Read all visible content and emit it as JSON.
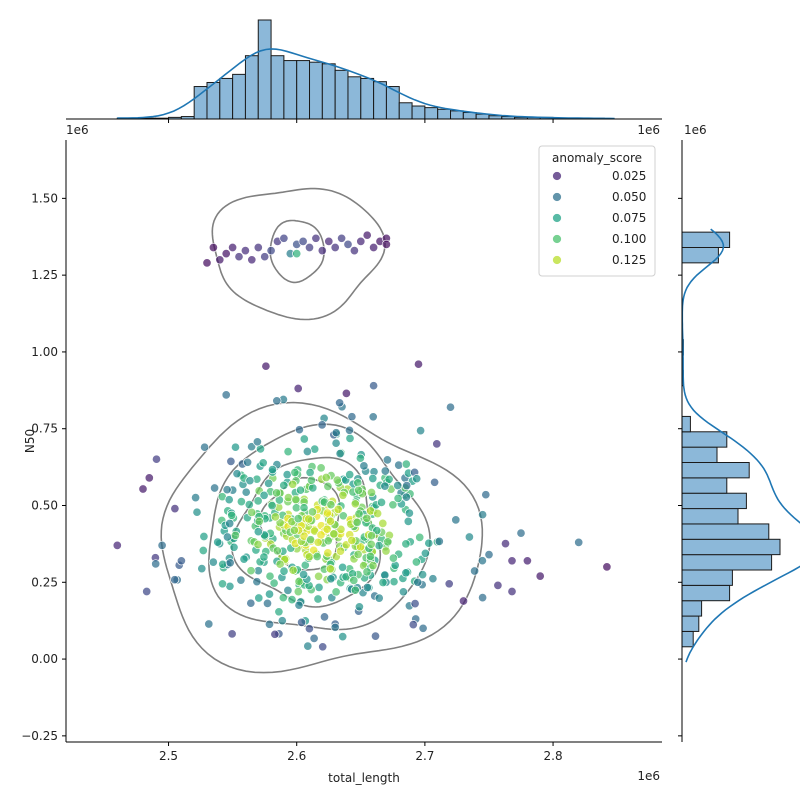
{
  "chart_data": {
    "type": "scatter",
    "subtype": "jointplot",
    "xlabel": "total_length",
    "ylabel": "N50",
    "x_offset_label": "1e6",
    "x_scale": 1000000,
    "xlim": [
      2.42,
      2.885
    ],
    "ylim": [
      -0.27,
      1.69
    ],
    "x_ticks": [
      2.5,
      2.6,
      2.7,
      2.8
    ],
    "x_tick_labels": [
      "2.5",
      "2.6",
      "2.7",
      "2.8"
    ],
    "y_ticks": [
      -0.25,
      0.0,
      0.25,
      0.5,
      0.75,
      1.0,
      1.25,
      1.5
    ],
    "y_tick_labels": [
      "−0.25",
      "0.00",
      "0.25",
      "0.50",
      "0.75",
      "1.00",
      "1.25",
      "1.50"
    ],
    "legend": {
      "title": "anomaly_score",
      "placement": "top-right",
      "entries": [
        {
          "label": "0.025",
          "value": 0.025,
          "color": "#482677"
        },
        {
          "label": "0.050",
          "value": 0.05,
          "color": "#2d708e"
        },
        {
          "label": "0.075",
          "value": 0.075,
          "color": "#20a387"
        },
        {
          "label": "0.100",
          "value": 0.1,
          "color": "#4ac16d"
        },
        {
          "label": "0.125",
          "value": 0.125,
          "color": "#b8de29"
        }
      ]
    },
    "colormap": "viridis",
    "hue_range": [
      0.0,
      0.14
    ],
    "series": [
      {
        "name": "upper cluster",
        "points": [
          [
            2.53,
            1.29,
            0.005
          ],
          [
            2.535,
            1.34,
            0.005
          ],
          [
            2.54,
            1.3,
            0.01
          ],
          [
            2.545,
            1.32,
            0.008
          ],
          [
            2.55,
            1.34,
            0.012
          ],
          [
            2.555,
            1.31,
            0.02
          ],
          [
            2.56,
            1.33,
            0.018
          ],
          [
            2.565,
            1.3,
            0.015
          ],
          [
            2.57,
            1.34,
            0.02
          ],
          [
            2.575,
            1.31,
            0.025
          ],
          [
            2.58,
            1.33,
            0.03
          ],
          [
            2.585,
            1.36,
            0.022
          ],
          [
            2.59,
            1.37,
            0.028
          ],
          [
            2.595,
            1.32,
            0.06
          ],
          [
            2.6,
            1.32,
            0.09
          ],
          [
            2.6,
            1.35,
            0.035
          ],
          [
            2.605,
            1.36,
            0.03
          ],
          [
            2.61,
            1.34,
            0.025
          ],
          [
            2.615,
            1.37,
            0.02
          ],
          [
            2.62,
            1.33,
            0.018
          ],
          [
            2.625,
            1.36,
            0.015
          ],
          [
            2.63,
            1.34,
            0.02
          ],
          [
            2.635,
            1.37,
            0.025
          ],
          [
            2.64,
            1.35,
            0.03
          ],
          [
            2.645,
            1.33,
            0.02
          ],
          [
            2.65,
            1.36,
            0.015
          ],
          [
            2.655,
            1.38,
            0.01
          ],
          [
            2.66,
            1.34,
            0.012
          ],
          [
            2.665,
            1.36,
            0.008
          ],
          [
            2.67,
            1.37,
            0.006
          ],
          [
            2.67,
            1.35,
            0.005
          ]
        ]
      },
      {
        "name": "lower cluster",
        "generated_from_summary": true,
        "center": [
          2.62,
          0.43
        ],
        "spread": [
          0.045,
          0.15
        ],
        "count": 520
      },
      {
        "name": "outliers",
        "points": [
          [
            2.46,
            0.37,
            0.015
          ],
          [
            2.485,
            0.59,
            0.01
          ],
          [
            2.49,
            0.31,
            0.05
          ],
          [
            2.495,
            0.37,
            0.05
          ],
          [
            2.483,
            0.22,
            0.03
          ],
          [
            2.505,
            0.49,
            0.02
          ],
          [
            2.51,
            0.32,
            0.04
          ],
          [
            2.545,
            0.86,
            0.05
          ],
          [
            2.66,
            0.89,
            0.04
          ],
          [
            2.695,
            0.96,
            0.01
          ],
          [
            2.72,
            0.82,
            0.05
          ],
          [
            2.775,
            0.41,
            0.05
          ],
          [
            2.82,
            0.38,
            0.05
          ],
          [
            2.842,
            0.3,
            0.005
          ],
          [
            2.79,
            0.27,
            0.01
          ],
          [
            2.78,
            0.32,
            0.012
          ],
          [
            2.768,
            0.22,
            0.02
          ],
          [
            2.768,
            0.32,
            0.015
          ],
          [
            2.757,
            0.24,
            0.02
          ],
          [
            2.745,
            0.2,
            0.05
          ],
          [
            2.745,
            0.47,
            0.06
          ],
          [
            2.75,
            0.34,
            0.05
          ]
        ]
      }
    ],
    "marginal_x_histogram": {
      "bin_edges": [
        2.46,
        2.47,
        2.48,
        2.49,
        2.5,
        2.51,
        2.52,
        2.53,
        2.54,
        2.55,
        2.56,
        2.57,
        2.58,
        2.59,
        2.6,
        2.61,
        2.62,
        2.63,
        2.64,
        2.65,
        2.66,
        2.67,
        2.68,
        2.69,
        2.7,
        2.71,
        2.72,
        2.73,
        2.74,
        2.75,
        2.76,
        2.77,
        2.78,
        2.79,
        2.8,
        2.81,
        2.82,
        2.83,
        2.84,
        2.85
      ],
      "counts": [
        1,
        1,
        1,
        1,
        2,
        3,
        40,
        45,
        50,
        55,
        78,
        122,
        78,
        72,
        72,
        70,
        68,
        60,
        52,
        50,
        46,
        40,
        20,
        16,
        14,
        12,
        10,
        8,
        6,
        4,
        3,
        2,
        2,
        2,
        1,
        1,
        1,
        1,
        0
      ],
      "kde_color": "#1f77b4",
      "bar_color": "#8cb8d9"
    },
    "marginal_y_histogram": {
      "bin_edges": [
        0.04,
        0.09,
        0.14,
        0.19,
        0.24,
        0.29,
        0.34,
        0.39,
        0.44,
        0.49,
        0.54,
        0.59,
        0.64,
        0.69,
        0.74,
        0.79,
        0.84,
        0.89,
        0.94,
        0.99,
        1.04,
        1.09,
        1.14,
        1.19,
        1.24,
        1.29,
        1.34,
        1.39
      ],
      "counts": [
        8,
        12,
        14,
        34,
        36,
        64,
        70,
        62,
        40,
        46,
        32,
        48,
        25,
        32,
        6,
        0,
        0,
        1,
        0,
        1,
        0,
        0,
        0,
        0,
        0,
        26,
        34
      ],
      "kde_color": "#1f77b4",
      "bar_color": "#8cb8d9"
    },
    "contours": [
      {
        "cluster": "upper",
        "center": [
          2.6,
          1.33
        ],
        "rx": 0.066,
        "ry": 0.21,
        "wobble": 0.06
      },
      {
        "cluster": "upper",
        "center": [
          2.6,
          1.33
        ],
        "rx": 0.021,
        "ry": 0.1,
        "wobble": 0.03
      },
      {
        "cluster": "lower",
        "center": [
          2.615,
          0.38
        ],
        "rx": 0.125,
        "ry": 0.42,
        "wobble": 0.07
      },
      {
        "cluster": "lower",
        "center": [
          2.615,
          0.41
        ],
        "rx": 0.085,
        "ry": 0.33,
        "wobble": 0.06
      },
      {
        "cluster": "lower",
        "center": [
          2.61,
          0.41
        ],
        "rx": 0.055,
        "ry": 0.24,
        "wobble": 0.08
      },
      {
        "cluster": "lower",
        "center": [
          2.605,
          0.44
        ],
        "rx": 0.03,
        "ry": 0.15,
        "wobble": 0.08
      }
    ],
    "contour_color": "#808080"
  }
}
